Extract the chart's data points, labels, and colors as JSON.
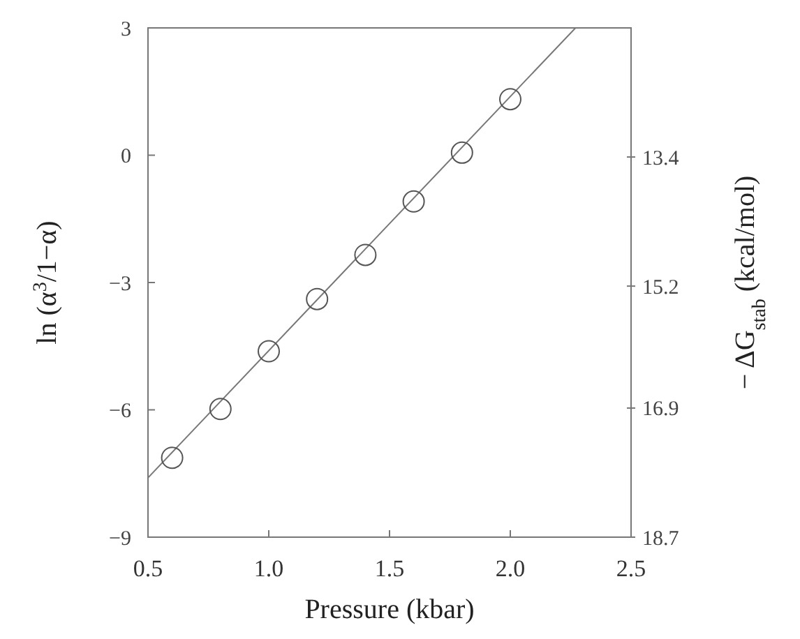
{
  "chart_data": {
    "type": "scatter",
    "xlabel": "Pressure (kbar)",
    "ylabel": "ln (α$^{3}$/1−α)",
    "y2label": "− ΔG$_{stab}$ (kcal/mol)",
    "x": [
      0.6,
      0.8,
      1.0,
      1.2,
      1.4,
      1.6,
      1.8,
      2.0
    ],
    "series": [
      {
        "color": "#555555",
        "marker": "circle",
        "values": [
          -7.13,
          -5.98,
          -4.62,
          -3.39,
          -2.35,
          -1.09,
          0.06,
          1.32
        ]
      },
      {
        "type": "line",
        "color": "#777777",
        "x": [
          0.5,
          2.27
        ],
        "values": [
          -7.6,
          3
        ]
      }
    ],
    "xlim": [
      0.5,
      2.5
    ],
    "xticks": [
      {
        "value": 0.5,
        "label": "0.5"
      },
      {
        "value": 1,
        "label": "1.0"
      },
      {
        "value": 1.5,
        "label": "1.5"
      },
      {
        "value": 2,
        "label": "2.0"
      },
      {
        "value": 2.5,
        "label": "2.5"
      }
    ],
    "ylim": [
      -9,
      3
    ],
    "yticks": [
      -9,
      -6,
      -3,
      0,
      3
    ],
    "y2lim": [
      18.7,
      11.6
    ],
    "y2ticks": [
      13.4,
      15.2,
      16.9,
      18.7
    ],
    "grid": false
  }
}
